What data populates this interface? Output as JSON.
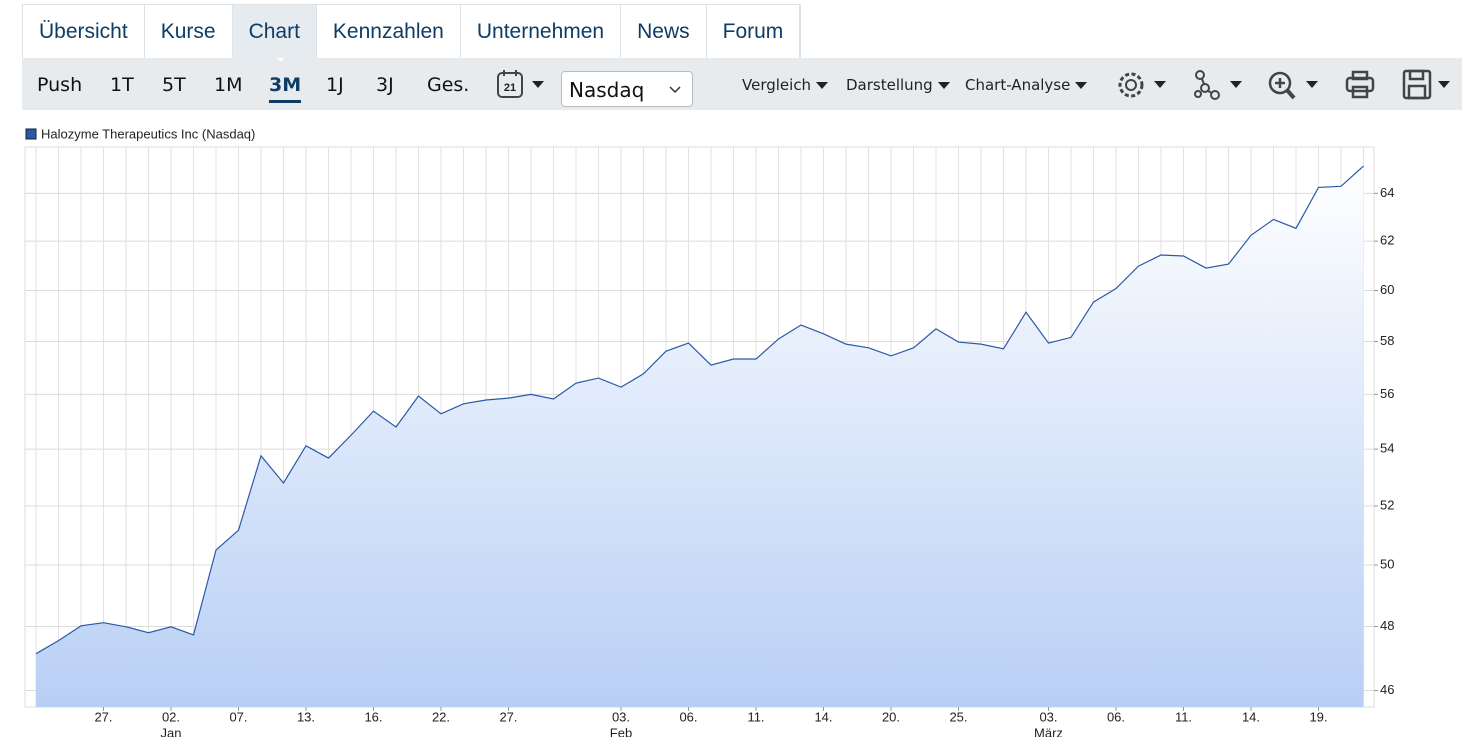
{
  "tabs": {
    "items": [
      "Übersicht",
      "Kurse",
      "Chart",
      "Kennzahlen",
      "Unternehmen",
      "News",
      "Forum"
    ],
    "active": "Chart"
  },
  "toolbar": {
    "periods": [
      "Push",
      "1T",
      "5T",
      "1M",
      "3M",
      "1J",
      "3J",
      "Ges."
    ],
    "active_period": "3M",
    "calendar_day": "21",
    "exchange": "Nasdaq",
    "menus": [
      "Vergleich",
      "Darstellung",
      "Chart-Analyse"
    ]
  },
  "chart_data": {
    "type": "line",
    "categories": [
      null,
      null,
      null,
      "27.",
      null,
      null,
      "02.",
      null,
      null,
      "07.",
      null,
      null,
      "13.",
      null,
      null,
      "16.",
      null,
      null,
      "22.",
      null,
      null,
      "27.",
      null,
      null,
      null,
      null,
      "03.",
      null,
      null,
      "06.",
      null,
      null,
      "11.",
      null,
      null,
      "14.",
      null,
      null,
      "20.",
      null,
      null,
      "25.",
      null,
      null,
      null,
      "03.",
      null,
      null,
      "06.",
      null,
      null,
      "11.",
      null,
      null,
      "14.",
      null,
      null,
      "19.",
      null,
      null
    ],
    "month_labels": [
      null,
      null,
      null,
      null,
      null,
      null,
      "Jan",
      null,
      null,
      null,
      null,
      null,
      null,
      null,
      null,
      null,
      null,
      null,
      null,
      null,
      null,
      null,
      null,
      null,
      null,
      null,
      "Feb",
      null,
      null,
      null,
      null,
      null,
      null,
      null,
      null,
      null,
      null,
      null,
      null,
      null,
      null,
      null,
      null,
      null,
      null,
      "März",
      null,
      null,
      null,
      null,
      null,
      null,
      null,
      null,
      null,
      null,
      null,
      null,
      null,
      null
    ],
    "series": [
      {
        "name": "Halozyme Therapeutics Inc (Nasdaq)",
        "color": "#2a5aa6",
        "values": [
          47.14,
          47.55,
          48.02,
          48.12,
          47.99,
          47.8,
          47.99,
          47.73,
          50.5,
          51.17,
          53.76,
          52.8,
          54.12,
          53.68,
          54.5,
          55.38,
          54.8,
          55.94,
          55.28,
          55.65,
          55.79,
          55.86,
          56.0,
          55.83,
          56.42,
          56.61,
          56.27,
          56.77,
          57.63,
          57.94,
          57.1,
          57.33,
          57.33,
          58.1,
          58.64,
          58.3,
          57.9,
          57.76,
          57.45,
          57.76,
          58.49,
          57.98,
          57.9,
          57.72,
          59.14,
          57.94,
          58.16,
          59.54,
          60.08,
          60.98,
          61.43,
          61.39,
          60.9,
          61.06,
          62.24,
          62.9,
          62.53,
          64.25,
          64.3,
          65.17
        ]
      }
    ],
    "ylim": [
      45.5,
      66
    ],
    "yticks": [
      46,
      48,
      50,
      52,
      54,
      56,
      58,
      60,
      62,
      64
    ],
    "log_scale": true,
    "grid": true,
    "area_fill": true
  }
}
